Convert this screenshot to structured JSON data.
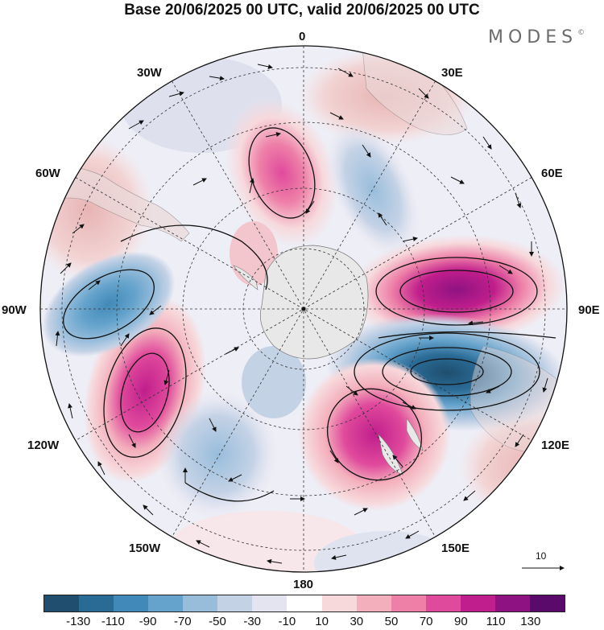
{
  "title": "Base 20/06/2025 00 UTC, valid 20/06/2025 00 UTC",
  "brand": "MODES",
  "brand_mark": "©",
  "longitude_labels": {
    "lon_0": "0",
    "lon_30e": "30E",
    "lon_60e": "60E",
    "lon_90e": "90E",
    "lon_120e": "120E",
    "lon_150e": "150E",
    "lon_180": "180",
    "lon_150w": "150W",
    "lon_120w": "120W",
    "lon_90w": "90W",
    "lon_60w": "60W",
    "lon_30w": "30W"
  },
  "reference_vector": "10",
  "colorbar": {
    "colors": [
      "#1f4e6e",
      "#2a6b96",
      "#4189b8",
      "#65a3cc",
      "#98bddb",
      "#c4d2e6",
      "#e4e4f0",
      "#ffffff",
      "#f7d9dc",
      "#f3b0bc",
      "#ee80a8",
      "#e04a9c",
      "#c01e8c",
      "#8e1281",
      "#5a0a6b"
    ],
    "labels": [
      "-130",
      "-110",
      "-90",
      "-70",
      "-50",
      "-30",
      "-10",
      "10",
      "30",
      "50",
      "70",
      "90",
      "110",
      "130"
    ]
  },
  "colors": {
    "ocean_land_gray": "#e6e6e6",
    "grid": "#333333"
  }
}
